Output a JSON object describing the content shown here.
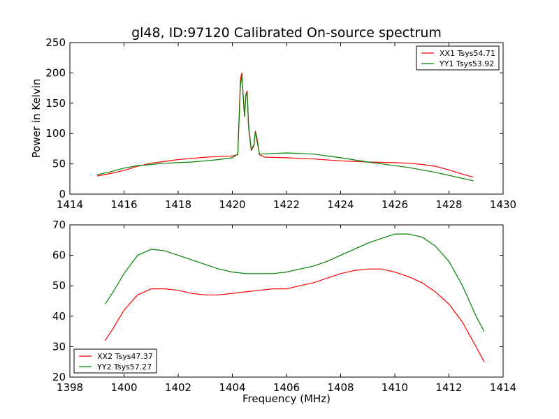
{
  "title": "gl48, ID:97120 Calibrated On-source spectrum",
  "colors": {
    "red": "#ff0000",
    "green": "#008000"
  },
  "chart_data": [
    {
      "type": "line",
      "ylabel": "Power in Kelvin",
      "xlabel": "",
      "xlim": [
        1414,
        1430
      ],
      "ylim": [
        0,
        250
      ],
      "xticks": [
        1414,
        1416,
        1418,
        1420,
        1422,
        1424,
        1426,
        1428,
        1430
      ],
      "yticks": [
        0,
        50,
        100,
        150,
        200,
        250
      ],
      "legend_position": "top-right",
      "series": [
        {
          "name": "XX1 Tsys54.71",
          "color": "#ff0000",
          "points": [
            [
              1415.0,
              30
            ],
            [
              1415.5,
              34
            ],
            [
              1416.0,
              39
            ],
            [
              1416.5,
              46
            ],
            [
              1417.0,
              51
            ],
            [
              1417.5,
              54
            ],
            [
              1418.0,
              57
            ],
            [
              1418.5,
              59
            ],
            [
              1419.0,
              61
            ],
            [
              1419.5,
              62
            ],
            [
              1420.0,
              63
            ],
            [
              1420.2,
              65
            ],
            [
              1420.3,
              190
            ],
            [
              1420.35,
              200
            ],
            [
              1420.4,
              160
            ],
            [
              1420.45,
              130
            ],
            [
              1420.5,
              165
            ],
            [
              1420.55,
              170
            ],
            [
              1420.6,
              110
            ],
            [
              1420.7,
              72
            ],
            [
              1420.8,
              80
            ],
            [
              1420.85,
              104
            ],
            [
              1420.9,
              95
            ],
            [
              1421.0,
              65
            ],
            [
              1421.2,
              61
            ],
            [
              1422.0,
              60
            ],
            [
              1423.0,
              58
            ],
            [
              1424.0,
              55
            ],
            [
              1425.0,
              53
            ],
            [
              1426.0,
              52
            ],
            [
              1426.5,
              51
            ],
            [
              1427.0,
              49
            ],
            [
              1427.5,
              46
            ],
            [
              1428.0,
              40
            ],
            [
              1428.5,
              33
            ],
            [
              1428.9,
              28
            ]
          ]
        },
        {
          "name": "YY1 Tsys53.92",
          "color": "#008000",
          "points": [
            [
              1415.0,
              32
            ],
            [
              1415.5,
              37
            ],
            [
              1416.0,
              43
            ],
            [
              1416.5,
              47
            ],
            [
              1417.0,
              49
            ],
            [
              1417.5,
              51
            ],
            [
              1418.0,
              52
            ],
            [
              1418.5,
              53
            ],
            [
              1419.0,
              55
            ],
            [
              1419.5,
              57
            ],
            [
              1420.0,
              60
            ],
            [
              1420.2,
              66
            ],
            [
              1420.3,
              180
            ],
            [
              1420.35,
              195
            ],
            [
              1420.4,
              165
            ],
            [
              1420.45,
              128
            ],
            [
              1420.5,
              162
            ],
            [
              1420.55,
              168
            ],
            [
              1420.6,
              115
            ],
            [
              1420.7,
              73
            ],
            [
              1420.8,
              82
            ],
            [
              1420.85,
              103
            ],
            [
              1420.9,
              90
            ],
            [
              1421.0,
              66
            ],
            [
              1421.5,
              67
            ],
            [
              1422.0,
              68
            ],
            [
              1423.0,
              66
            ],
            [
              1424.0,
              60
            ],
            [
              1425.0,
              53
            ],
            [
              1426.0,
              47
            ],
            [
              1426.5,
              44
            ],
            [
              1427.0,
              40
            ],
            [
              1427.5,
              36
            ],
            [
              1428.0,
              31
            ],
            [
              1428.5,
              26
            ],
            [
              1428.9,
              22
            ]
          ]
        }
      ]
    },
    {
      "type": "line",
      "ylabel": "",
      "xlabel": "Frequency (MHz)",
      "xlim": [
        1398,
        1414
      ],
      "ylim": [
        20,
        70
      ],
      "xticks": [
        1398,
        1400,
        1402,
        1404,
        1406,
        1408,
        1410,
        1412,
        1414
      ],
      "yticks": [
        20,
        30,
        40,
        50,
        60,
        70
      ],
      "legend_position": "bottom-left",
      "series": [
        {
          "name": "XX2 Tsys47.37",
          "color": "#ff0000",
          "points": [
            [
              1399.3,
              32
            ],
            [
              1399.6,
              36
            ],
            [
              1400.0,
              42
            ],
            [
              1400.5,
              47
            ],
            [
              1401.0,
              49
            ],
            [
              1401.5,
              49
            ],
            [
              1402.0,
              48.5
            ],
            [
              1402.5,
              47.5
            ],
            [
              1403.0,
              47
            ],
            [
              1403.5,
              47
            ],
            [
              1404.0,
              47.5
            ],
            [
              1404.5,
              48
            ],
            [
              1405.0,
              48.5
            ],
            [
              1405.5,
              49
            ],
            [
              1406.0,
              49
            ],
            [
              1406.5,
              50
            ],
            [
              1407.0,
              51
            ],
            [
              1407.5,
              52.5
            ],
            [
              1408.0,
              54
            ],
            [
              1408.5,
              55
            ],
            [
              1409.0,
              55.5
            ],
            [
              1409.5,
              55.5
            ],
            [
              1410.0,
              54.5
            ],
            [
              1410.5,
              53
            ],
            [
              1411.0,
              51
            ],
            [
              1411.5,
              48
            ],
            [
              1412.0,
              44
            ],
            [
              1412.5,
              38
            ],
            [
              1413.0,
              30
            ],
            [
              1413.3,
              25
            ]
          ]
        },
        {
          "name": "YY2 Tsys57.27",
          "color": "#008000",
          "points": [
            [
              1399.3,
              44
            ],
            [
              1399.6,
              48
            ],
            [
              1400.0,
              54
            ],
            [
              1400.5,
              60
            ],
            [
              1401.0,
              62
            ],
            [
              1401.5,
              61.5
            ],
            [
              1402.0,
              60
            ],
            [
              1402.5,
              58.5
            ],
            [
              1403.0,
              57
            ],
            [
              1403.5,
              55.5
            ],
            [
              1404.0,
              54.5
            ],
            [
              1404.5,
              54
            ],
            [
              1405.0,
              54
            ],
            [
              1405.5,
              54
            ],
            [
              1406.0,
              54.5
            ],
            [
              1406.5,
              55.5
            ],
            [
              1407.0,
              56.5
            ],
            [
              1407.5,
              58
            ],
            [
              1408.0,
              60
            ],
            [
              1408.5,
              62
            ],
            [
              1409.0,
              64
            ],
            [
              1409.5,
              65.5
            ],
            [
              1410.0,
              67
            ],
            [
              1410.5,
              67
            ],
            [
              1411.0,
              66
            ],
            [
              1411.5,
              63
            ],
            [
              1412.0,
              58
            ],
            [
              1412.5,
              50
            ],
            [
              1413.0,
              40
            ],
            [
              1413.3,
              35
            ]
          ]
        }
      ]
    }
  ]
}
